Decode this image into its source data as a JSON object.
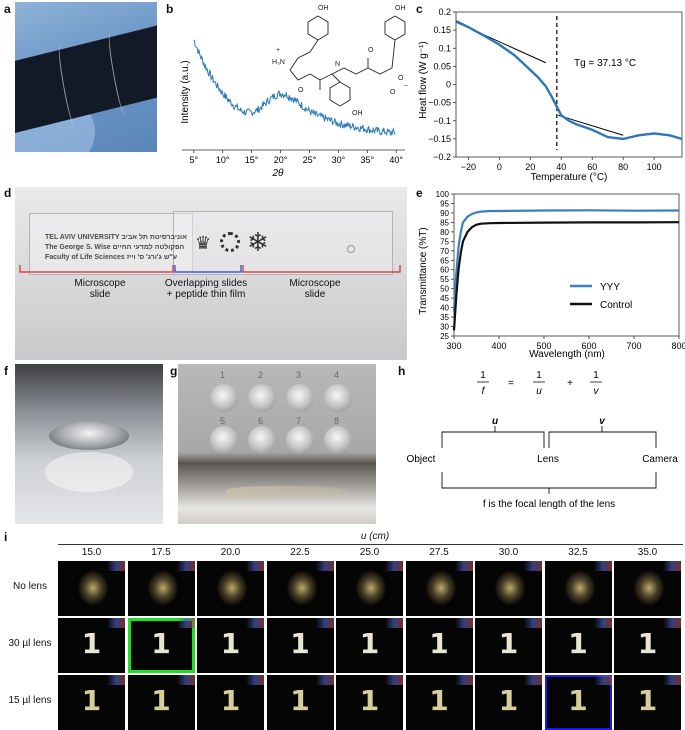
{
  "panel_labels": [
    "a",
    "b",
    "c",
    "d",
    "e",
    "f",
    "g",
    "h",
    "i"
  ],
  "b": {
    "ylabel": "Intensity (a.u.)",
    "xlabel": "2θ",
    "x_ticks": [
      "5°",
      "10°",
      "15°",
      "20°",
      "25°",
      "30°",
      "35°",
      "40°"
    ]
  },
  "c": {
    "ylabel": "Heat flow (W g⁻¹)",
    "xlabel": "Temperature (°C)",
    "annotation": "Tg = 37.13 °C",
    "x_ticks": [
      "−20",
      "0",
      "20",
      "40",
      "60",
      "80",
      "100"
    ],
    "y_ticks": [
      "0.2",
      "0.15",
      "0.1",
      "0.05",
      "0",
      "−0.05",
      "−0.1",
      "−0.15",
      "−0.2"
    ]
  },
  "d": {
    "slide_text": [
      "TEL AVIV UNIVERSITY אוניברסיטת תל אביב",
      "The George S. Wise הפקולטה למדעי החיים",
      "Faculty of Life Sciences ע\"ש ג'ורג' ס' וייז"
    ],
    "left_label": "Microscope\nslide",
    "middle_label": "Overlapping slides\n+ peptide thin film",
    "right_label": "Microscope\nslide",
    "colors": {
      "red": "#d62728",
      "blue": "#1f3fd6"
    }
  },
  "e": {
    "ylabel": "Transmittance (%T)",
    "xlabel": "Wavelength (nm)",
    "x_ticks": [
      "300",
      "400",
      "500",
      "600",
      "700",
      "800"
    ],
    "y_ticks": [
      "100",
      "95",
      "90",
      "85",
      "80",
      "75",
      "70",
      "65",
      "60",
      "55",
      "50",
      "45",
      "40",
      "35",
      "30",
      "25"
    ]
  },
  "g": {
    "well_numbers": [
      "1",
      "2",
      "3",
      "4",
      "5",
      "6",
      "7",
      "8"
    ]
  },
  "h": {
    "eq_one": "1",
    "eq_f": "f",
    "eq_equals": "=",
    "eq_u": "u",
    "eq_plus": "+",
    "eq_v": "v",
    "u_label": "u",
    "v_label": "v",
    "object": "Object",
    "lens": "Lens",
    "camera": "Camera",
    "caption": "f is the focal length of the lens"
  },
  "i": {
    "u_title": "u (cm)",
    "u_values": [
      "15.0",
      "17.5",
      "20.0",
      "22.5",
      "25.0",
      "27.5",
      "30.0",
      "32.5",
      "35.0"
    ],
    "rows": [
      "No lens",
      "30 µl lens",
      "15 µl lens"
    ],
    "highlight_colors": {
      "green": "#22dd22",
      "blue": "#1a1aee"
    }
  },
  "chart_data": [
    {
      "type": "line",
      "panel": "b",
      "xlabel": "2θ",
      "ylabel": "Intensity (a.u.)",
      "xlim": [
        4,
        41
      ],
      "x": [
        5,
        6,
        7,
        8,
        9,
        10,
        11,
        12,
        13,
        14,
        15,
        16,
        17,
        18,
        19,
        20,
        21,
        22,
        23,
        24,
        25,
        26,
        27,
        28,
        29,
        30,
        31,
        32,
        33,
        34,
        35,
        36,
        37,
        38,
        39,
        40
      ],
      "series": [
        {
          "color": "#2b78b8",
          "values": [
            0.95,
            0.82,
            0.71,
            0.62,
            0.54,
            0.47,
            0.41,
            0.36,
            0.32,
            0.3,
            0.3,
            0.32,
            0.36,
            0.41,
            0.45,
            0.47,
            0.46,
            0.43,
            0.39,
            0.35,
            0.31,
            0.28,
            0.26,
            0.24,
            0.22,
            0.2,
            0.19,
            0.18,
            0.17,
            0.16,
            0.15,
            0.14,
            0.13,
            0.13,
            0.12,
            0.12
          ]
        }
      ]
    },
    {
      "type": "line",
      "panel": "c",
      "xlabel": "Temperature (°C)",
      "ylabel": "Heat flow (W g⁻¹)",
      "xlim": [
        -28,
        118
      ],
      "ylim": [
        -0.2,
        0.2
      ],
      "annotation_x": 37.13,
      "x": [
        -28,
        -20,
        -10,
        0,
        10,
        20,
        25,
        30,
        34,
        37,
        40,
        45,
        50,
        60,
        70,
        80,
        90,
        100,
        110,
        118
      ],
      "series": [
        {
          "color": "#2b78b8",
          "values": [
            0.175,
            0.158,
            0.135,
            0.11,
            0.08,
            0.04,
            0.02,
            -0.005,
            -0.035,
            -0.06,
            -0.085,
            -0.1,
            -0.11,
            -0.125,
            -0.145,
            -0.15,
            -0.14,
            -0.135,
            -0.14,
            -0.15
          ]
        }
      ]
    },
    {
      "type": "line",
      "panel": "e",
      "xlabel": "Wavelength (nm)",
      "ylabel": "Transmittance (%T)",
      "xlim": [
        300,
        800
      ],
      "ylim": [
        25,
        100
      ],
      "x": [
        300,
        305,
        310,
        315,
        320,
        330,
        340,
        350,
        360,
        380,
        400,
        500,
        600,
        700,
        800
      ],
      "series": [
        {
          "name": "YYY",
          "color": "#3a7fc2",
          "values": [
            38,
            58,
            72,
            80,
            85,
            88,
            89.5,
            90.3,
            90.7,
            91,
            91,
            91.3,
            91.4,
            91.2,
            91.3
          ]
        },
        {
          "name": "Control",
          "color": "#111111",
          "values": [
            28,
            46,
            60,
            69,
            75,
            80,
            82.5,
            83.8,
            84.3,
            84.6,
            84.7,
            84.9,
            85,
            85,
            85.1
          ]
        }
      ]
    }
  ]
}
